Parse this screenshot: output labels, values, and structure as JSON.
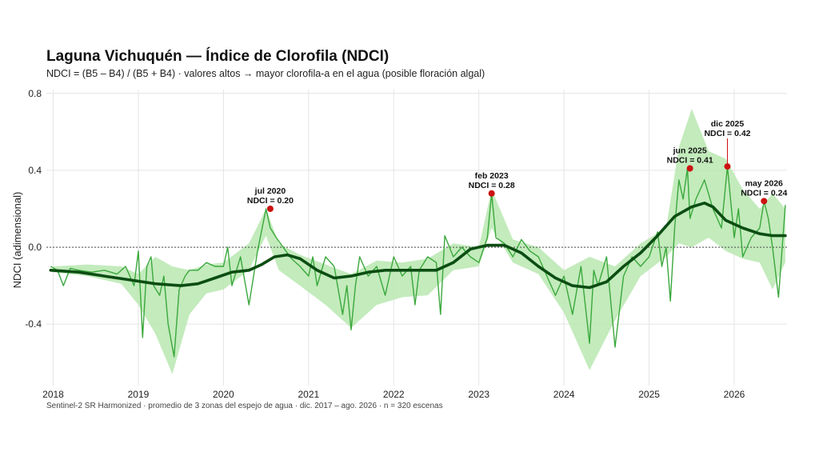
{
  "chart_data": {
    "type": "line",
    "title": "Laguna Vichuquén — Índice de Clorofila (NDCI)",
    "subtitle": "NDCI = (B5 – B4) / (B5 + B4)   ·   valores altos → mayor clorofila-a en el agua (posible floración algal)",
    "caption": "Sentinel-2 SR Harmonized  ·  promedio de 3 zonas del espejo de agua  ·  dic. 2017 – ago. 2026  ·  n = 320 escenas",
    "xlabel": "",
    "ylabel": "NDCI (adimensional)",
    "xlim": [
      2017.92,
      2026.62
    ],
    "ylim": [
      -0.72,
      0.82
    ],
    "x_ticks": [
      "2018",
      "2019",
      "2020",
      "2021",
      "2022",
      "2023",
      "2024",
      "2025",
      "2026"
    ],
    "y_ticks": [
      "-0.4",
      "0.0",
      "0.4",
      "0.8"
    ],
    "y_tick_values": [
      -0.4,
      0.0,
      0.4,
      0.8
    ],
    "grid": true,
    "reference_line": 0,
    "series": [
      {
        "kind": "band",
        "color": "#b9e8b0",
        "x": [
          2018.0,
          2018.4,
          2018.8,
          2019.0,
          2019.2,
          2019.4,
          2019.6,
          2019.8,
          2020.0,
          2020.3,
          2020.5,
          2020.65,
          2020.9,
          2021.2,
          2021.5,
          2021.8,
          2022.1,
          2022.4,
          2022.7,
          2023.0,
          2023.15,
          2023.4,
          2023.7,
          2024.0,
          2024.3,
          2024.6,
          2024.9,
          2025.2,
          2025.35,
          2025.5,
          2025.7,
          2025.9,
          2026.1,
          2026.3,
          2026.45,
          2026.6
        ],
        "upper": [
          -0.1,
          -0.09,
          -0.1,
          -0.14,
          -0.05,
          -0.1,
          -0.12,
          -0.09,
          -0.08,
          0.02,
          0.2,
          0.02,
          -0.04,
          -0.09,
          -0.14,
          -0.07,
          -0.08,
          -0.06,
          0.02,
          0.0,
          0.3,
          0.04,
          0.0,
          -0.12,
          -0.05,
          -0.1,
          0.02,
          0.1,
          0.52,
          0.72,
          0.5,
          0.46,
          0.3,
          0.2,
          0.28,
          0.2
        ],
        "lower": [
          -0.13,
          -0.15,
          -0.19,
          -0.3,
          -0.45,
          -0.66,
          -0.35,
          -0.24,
          -0.22,
          -0.12,
          0.06,
          -0.12,
          -0.2,
          -0.3,
          -0.42,
          -0.3,
          -0.26,
          -0.25,
          -0.12,
          -0.1,
          0.1,
          -0.08,
          -0.14,
          -0.34,
          -0.64,
          -0.38,
          -0.15,
          -0.05,
          0.02,
          0.0,
          0.05,
          -0.02,
          -0.06,
          -0.08,
          -0.22,
          -0.08
        ]
      },
      {
        "kind": "ndci",
        "color": "#3aa83c",
        "x": [
          2017.97,
          2018.05,
          2018.12,
          2018.2,
          2018.3,
          2018.45,
          2018.6,
          2018.75,
          2018.85,
          2018.95,
          2019.0,
          2019.05,
          2019.1,
          2019.15,
          2019.18,
          2019.25,
          2019.3,
          2019.35,
          2019.42,
          2019.48,
          2019.55,
          2019.6,
          2019.7,
          2019.8,
          2019.9,
          2020.0,
          2020.05,
          2020.1,
          2020.2,
          2020.3,
          2020.4,
          2020.5,
          2020.55,
          2020.62,
          2020.7,
          2020.8,
          2020.9,
          2021.0,
          2021.05,
          2021.1,
          2021.2,
          2021.3,
          2021.4,
          2021.45,
          2021.5,
          2021.55,
          2021.6,
          2021.7,
          2021.8,
          2021.9,
          2022.0,
          2022.1,
          2022.2,
          2022.25,
          2022.3,
          2022.4,
          2022.5,
          2022.55,
          2022.6,
          2022.7,
          2022.8,
          2022.9,
          2023.0,
          2023.1,
          2023.15,
          2023.2,
          2023.3,
          2023.4,
          2023.5,
          2023.6,
          2023.7,
          2023.8,
          2023.9,
          2024.0,
          2024.1,
          2024.2,
          2024.3,
          2024.35,
          2024.4,
          2024.5,
          2024.6,
          2024.7,
          2024.8,
          2024.9,
          2025.0,
          2025.1,
          2025.15,
          2025.2,
          2025.25,
          2025.3,
          2025.35,
          2025.4,
          2025.45,
          2025.48,
          2025.55,
          2025.65,
          2025.75,
          2025.85,
          2025.92,
          2026.0,
          2026.05,
          2026.1,
          2026.2,
          2026.3,
          2026.35,
          2026.4,
          2026.45,
          2026.52,
          2026.6
        ],
        "y": [
          -0.1,
          -0.12,
          -0.2,
          -0.11,
          -0.12,
          -0.13,
          -0.12,
          -0.14,
          -0.1,
          -0.2,
          -0.02,
          -0.47,
          -0.1,
          -0.05,
          -0.2,
          -0.25,
          -0.15,
          -0.4,
          -0.57,
          -0.22,
          -0.15,
          -0.12,
          -0.12,
          -0.08,
          -0.1,
          -0.1,
          0.0,
          -0.2,
          -0.05,
          -0.3,
          -0.02,
          0.2,
          0.1,
          0.05,
          0.0,
          -0.06,
          -0.1,
          -0.15,
          -0.05,
          -0.2,
          -0.05,
          -0.1,
          -0.35,
          -0.2,
          -0.43,
          -0.2,
          -0.05,
          -0.15,
          -0.1,
          -0.25,
          -0.05,
          -0.15,
          -0.1,
          -0.3,
          -0.12,
          -0.05,
          -0.08,
          -0.35,
          0.06,
          -0.05,
          0.0,
          -0.05,
          -0.08,
          0.05,
          0.28,
          0.05,
          0.02,
          -0.05,
          0.04,
          -0.02,
          -0.05,
          -0.15,
          -0.25,
          -0.15,
          -0.35,
          -0.1,
          -0.5,
          -0.12,
          -0.2,
          -0.05,
          -0.52,
          -0.15,
          -0.05,
          -0.1,
          -0.05,
          0.08,
          -0.1,
          0.0,
          -0.28,
          0.1,
          0.35,
          0.25,
          0.41,
          0.15,
          0.25,
          0.35,
          0.2,
          0.1,
          0.42,
          0.05,
          0.2,
          -0.05,
          0.05,
          0.1,
          0.24,
          0.15,
          0.0,
          -0.26,
          0.22
        ]
      },
      {
        "kind": "trend",
        "color": "#0b4d12",
        "x": [
          2017.97,
          2018.3,
          2018.6,
          2018.9,
          2019.2,
          2019.5,
          2019.7,
          2019.9,
          2020.1,
          2020.3,
          2020.45,
          2020.6,
          2020.75,
          2020.9,
          2021.1,
          2021.3,
          2021.5,
          2021.7,
          2021.9,
          2022.1,
          2022.3,
          2022.5,
          2022.7,
          2022.9,
          2023.1,
          2023.3,
          2023.5,
          2023.7,
          2023.9,
          2024.1,
          2024.3,
          2024.5,
          2024.7,
          2024.9,
          2025.1,
          2025.3,
          2025.5,
          2025.65,
          2025.75,
          2025.9,
          2026.1,
          2026.3,
          2026.45,
          2026.6
        ],
        "y": [
          -0.12,
          -0.13,
          -0.15,
          -0.17,
          -0.19,
          -0.2,
          -0.19,
          -0.16,
          -0.13,
          -0.12,
          -0.09,
          -0.05,
          -0.04,
          -0.06,
          -0.12,
          -0.16,
          -0.15,
          -0.13,
          -0.12,
          -0.12,
          -0.12,
          -0.12,
          -0.08,
          -0.01,
          0.01,
          0.01,
          -0.03,
          -0.1,
          -0.16,
          -0.2,
          -0.21,
          -0.18,
          -0.1,
          -0.03,
          0.06,
          0.16,
          0.21,
          0.23,
          0.21,
          0.14,
          0.1,
          0.07,
          0.06,
          0.06
        ]
      }
    ],
    "annotations": [
      {
        "x": 2020.55,
        "y": 0.2,
        "line1": "jul 2020",
        "line2": "NDCI = 0.20",
        "label_y": 0.27
      },
      {
        "x": 2023.15,
        "y": 0.28,
        "line1": "feb 2023",
        "line2": "NDCI = 0.28",
        "label_y": 0.35
      },
      {
        "x": 2025.48,
        "y": 0.41,
        "line1": "jun 2025",
        "line2": "NDCI = 0.41",
        "label_y": 0.48
      },
      {
        "x": 2025.92,
        "y": 0.42,
        "line1": "dic 2025",
        "line2": "NDCI = 0.42",
        "label_y": 0.62
      },
      {
        "x": 2026.35,
        "y": 0.24,
        "line1": "may 2026",
        "line2": "NDCI = 0.24",
        "label_y": 0.31
      }
    ],
    "colors": {
      "highlight": "#cc1111",
      "grid": "#e4e4e4",
      "reference": "#333333"
    }
  }
}
